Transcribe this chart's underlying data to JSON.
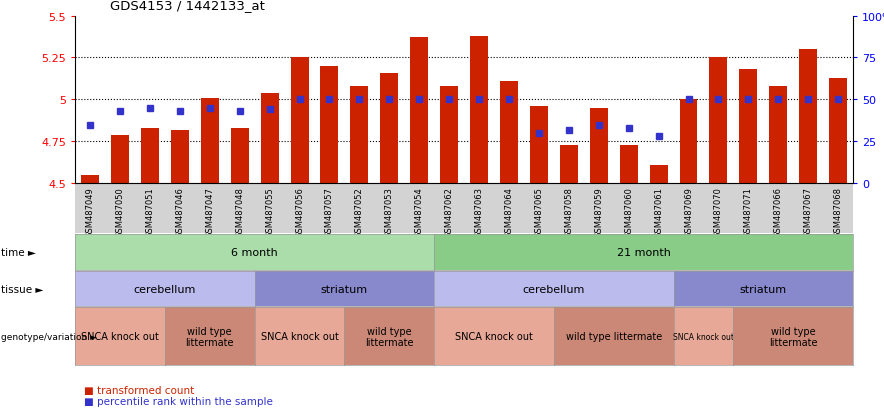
{
  "title": "GDS4153 / 1442133_at",
  "samples": [
    "GSM487049",
    "GSM487050",
    "GSM487051",
    "GSM487046",
    "GSM487047",
    "GSM487048",
    "GSM487055",
    "GSM487056",
    "GSM487057",
    "GSM487052",
    "GSM487053",
    "GSM487054",
    "GSM487062",
    "GSM487063",
    "GSM487064",
    "GSM487065",
    "GSM487058",
    "GSM487059",
    "GSM487060",
    "GSM487061",
    "GSM487069",
    "GSM487070",
    "GSM487071",
    "GSM487066",
    "GSM487067",
    "GSM487068"
  ],
  "bar_values": [
    4.55,
    4.79,
    4.83,
    4.82,
    5.01,
    4.83,
    5.04,
    5.25,
    5.2,
    5.08,
    5.16,
    5.37,
    5.08,
    5.38,
    5.11,
    4.96,
    4.73,
    4.95,
    4.73,
    4.61,
    5.0,
    5.25,
    5.18,
    5.08,
    5.3,
    5.13
  ],
  "percentile_values": [
    35,
    43,
    45,
    43,
    45,
    43,
    44,
    50,
    50,
    50,
    50,
    50,
    50,
    50,
    50,
    30,
    32,
    35,
    33,
    28,
    50,
    50,
    50,
    50,
    50,
    50
  ],
  "bar_color": "#cc2200",
  "percentile_color": "#3333cc",
  "ylim_left": [
    4.5,
    5.5
  ],
  "ylim_right": [
    0,
    100
  ],
  "yticks_left": [
    4.5,
    4.75,
    5.0,
    5.25,
    5.5
  ],
  "ytick_labels_left": [
    "4.5",
    "4.75",
    "5",
    "5.25",
    "5.5"
  ],
  "yticks_right": [
    0,
    25,
    50,
    75,
    100
  ],
  "ytick_labels_right": [
    "0",
    "25",
    "50",
    "75",
    "100%"
  ],
  "gridlines": [
    4.75,
    5.0,
    5.25
  ],
  "time_groups": [
    {
      "label": "6 month",
      "start": 0,
      "end": 11,
      "color": "#aaddaa"
    },
    {
      "label": "21 month",
      "start": 12,
      "end": 25,
      "color": "#88cc88"
    }
  ],
  "tissue_groups": [
    {
      "label": "cerebellum",
      "start": 0,
      "end": 5,
      "color": "#bbbbee"
    },
    {
      "label": "striatum",
      "start": 6,
      "end": 11,
      "color": "#8888cc"
    },
    {
      "label": "cerebellum",
      "start": 12,
      "end": 19,
      "color": "#bbbbee"
    },
    {
      "label": "striatum",
      "start": 20,
      "end": 25,
      "color": "#8888cc"
    }
  ],
  "genotype_groups": [
    {
      "label": "SNCA knock out",
      "start": 0,
      "end": 2,
      "color": "#e8a898"
    },
    {
      "label": "wild type\nlittermate",
      "start": 3,
      "end": 5,
      "color": "#cc8877"
    },
    {
      "label": "SNCA knock out",
      "start": 6,
      "end": 8,
      "color": "#e8a898"
    },
    {
      "label": "wild type\nlittermate",
      "start": 9,
      "end": 11,
      "color": "#cc8877"
    },
    {
      "label": "SNCA knock out",
      "start": 12,
      "end": 15,
      "color": "#e8a898"
    },
    {
      "label": "wild type littermate",
      "start": 16,
      "end": 19,
      "color": "#cc8877"
    },
    {
      "label": "SNCA knock out",
      "start": 20,
      "end": 21,
      "color": "#e8a898"
    },
    {
      "label": "wild type\nlittermate",
      "start": 22,
      "end": 25,
      "color": "#cc8877"
    }
  ],
  "legend_bar_label": "transformed count",
  "legend_pct_label": "percentile rank within the sample"
}
